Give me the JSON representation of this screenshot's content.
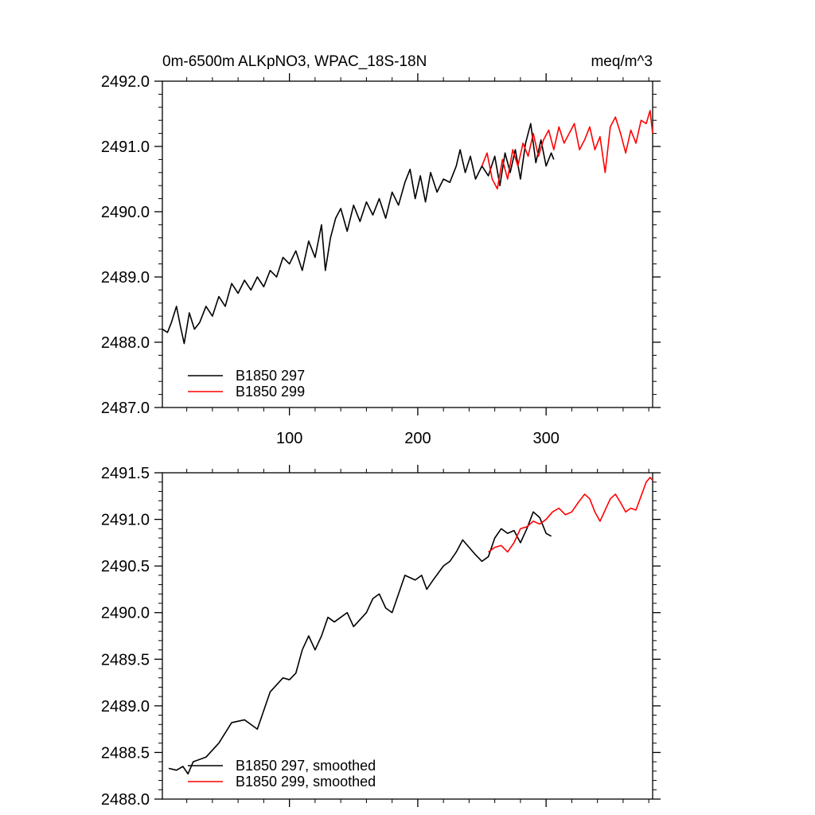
{
  "chart_data": [
    {
      "type": "line",
      "title_left": "0m-6500m ALKpNO3, WPAC_18S-18N",
      "title_right": "meq/m^3",
      "xlim": [
        1,
        383
      ],
      "ylim": [
        2487.0,
        2492.0
      ],
      "x_ticks": [
        100,
        200,
        300
      ],
      "x_tick_labels": [
        "100",
        "200",
        "300"
      ],
      "y_ticks": [
        2487.0,
        2488.0,
        2489.0,
        2490.0,
        2491.0,
        2492.0
      ],
      "y_tick_labels": [
        "2487.0",
        "2488.0",
        "2489.0",
        "2490.0",
        "2491.0",
        "2492.0"
      ],
      "legend": [
        "B1850 297",
        "B1850 299"
      ],
      "legend_position": "lower-left",
      "series": [
        {
          "name": "B1850 297",
          "color": "#000000",
          "points": [
            [
              1,
              2488.2
            ],
            [
              5,
              2488.15
            ],
            [
              8,
              2488.3
            ],
            [
              12,
              2488.55
            ],
            [
              15,
              2488.25
            ],
            [
              18,
              2487.98
            ],
            [
              22,
              2488.45
            ],
            [
              26,
              2488.2
            ],
            [
              30,
              2488.3
            ],
            [
              35,
              2488.55
            ],
            [
              40,
              2488.4
            ],
            [
              45,
              2488.7
            ],
            [
              50,
              2488.55
            ],
            [
              55,
              2488.9
            ],
            [
              60,
              2488.75
            ],
            [
              65,
              2488.95
            ],
            [
              70,
              2488.8
            ],
            [
              75,
              2489.0
            ],
            [
              80,
              2488.85
            ],
            [
              85,
              2489.1
            ],
            [
              90,
              2489.0
            ],
            [
              95,
              2489.3
            ],
            [
              100,
              2489.2
            ],
            [
              105,
              2489.4
            ],
            [
              110,
              2489.1
            ],
            [
              115,
              2489.55
            ],
            [
              120,
              2489.3
            ],
            [
              125,
              2489.8
            ],
            [
              128,
              2489.1
            ],
            [
              132,
              2489.6
            ],
            [
              136,
              2489.9
            ],
            [
              140,
              2490.05
            ],
            [
              145,
              2489.7
            ],
            [
              150,
              2490.1
            ],
            [
              155,
              2489.85
            ],
            [
              160,
              2490.15
            ],
            [
              165,
              2489.95
            ],
            [
              170,
              2490.2
            ],
            [
              175,
              2489.9
            ],
            [
              180,
              2490.3
            ],
            [
              185,
              2490.1
            ],
            [
              190,
              2490.45
            ],
            [
              194,
              2490.65
            ],
            [
              198,
              2490.2
            ],
            [
              202,
              2490.55
            ],
            [
              206,
              2490.15
            ],
            [
              210,
              2490.6
            ],
            [
              215,
              2490.3
            ],
            [
              220,
              2490.5
            ],
            [
              225,
              2490.45
            ],
            [
              230,
              2490.7
            ],
            [
              233,
              2490.95
            ],
            [
              237,
              2490.6
            ],
            [
              241,
              2490.85
            ],
            [
              245,
              2490.5
            ],
            [
              250,
              2490.7
            ],
            [
              255,
              2490.55
            ],
            [
              260,
              2490.85
            ],
            [
              264,
              2490.4
            ],
            [
              268,
              2490.9
            ],
            [
              272,
              2490.6
            ],
            [
              276,
              2490.95
            ],
            [
              280,
              2490.5
            ],
            [
              284,
              2491.05
            ],
            [
              288,
              2491.35
            ],
            [
              292,
              2490.75
            ],
            [
              296,
              2491.1
            ],
            [
              300,
              2490.7
            ],
            [
              304,
              2490.9
            ],
            [
              306,
              2490.8
            ]
          ]
        },
        {
          "name": "B1850 299",
          "color": "#ff0000",
          "points": [
            [
              250,
              2490.7
            ],
            [
              254,
              2490.9
            ],
            [
              258,
              2490.5
            ],
            [
              262,
              2490.35
            ],
            [
              266,
              2490.8
            ],
            [
              270,
              2490.5
            ],
            [
              274,
              2490.95
            ],
            [
              278,
              2490.7
            ],
            [
              282,
              2491.05
            ],
            [
              286,
              2490.85
            ],
            [
              290,
              2491.2
            ],
            [
              294,
              2490.85
            ],
            [
              298,
              2491.1
            ],
            [
              302,
              2491.25
            ],
            [
              306,
              2490.95
            ],
            [
              310,
              2491.3
            ],
            [
              314,
              2491.05
            ],
            [
              318,
              2491.2
            ],
            [
              322,
              2491.35
            ],
            [
              326,
              2490.95
            ],
            [
              330,
              2491.1
            ],
            [
              334,
              2491.3
            ],
            [
              338,
              2490.95
            ],
            [
              342,
              2491.15
            ],
            [
              346,
              2490.6
            ],
            [
              350,
              2491.3
            ],
            [
              354,
              2491.45
            ],
            [
              358,
              2491.2
            ],
            [
              362,
              2490.9
            ],
            [
              366,
              2491.25
            ],
            [
              370,
              2491.05
            ],
            [
              374,
              2491.4
            ],
            [
              378,
              2491.35
            ],
            [
              381,
              2491.55
            ],
            [
              383,
              2491.2
            ]
          ]
        }
      ]
    },
    {
      "type": "line",
      "xlim": [
        1,
        383
      ],
      "ylim": [
        2488.0,
        2491.5
      ],
      "x_ticks": [
        100,
        200,
        300
      ],
      "y_ticks": [
        2488.0,
        2488.5,
        2489.0,
        2489.5,
        2490.0,
        2490.5,
        2491.0,
        2491.5
      ],
      "y_tick_labels": [
        "2488.0",
        "2488.5",
        "2489.0",
        "2489.5",
        "2490.0",
        "2490.5",
        "2491.0",
        "2491.5"
      ],
      "legend": [
        "B1850 297, smoothed",
        "B1850 299, smoothed"
      ],
      "legend_position": "lower-left",
      "series": [
        {
          "name": "B1850 297, smoothed",
          "color": "#000000",
          "points": [
            [
              6,
              2488.33
            ],
            [
              12,
              2488.31
            ],
            [
              17,
              2488.35
            ],
            [
              21,
              2488.27
            ],
            [
              25,
              2488.4
            ],
            [
              35,
              2488.45
            ],
            [
              45,
              2488.6
            ],
            [
              55,
              2488.82
            ],
            [
              65,
              2488.85
            ],
            [
              70,
              2488.8
            ],
            [
              75,
              2488.75
            ],
            [
              80,
              2488.95
            ],
            [
              85,
              2489.15
            ],
            [
              95,
              2489.3
            ],
            [
              100,
              2489.28
            ],
            [
              105,
              2489.35
            ],
            [
              110,
              2489.6
            ],
            [
              115,
              2489.75
            ],
            [
              120,
              2489.6
            ],
            [
              125,
              2489.75
            ],
            [
              130,
              2489.95
            ],
            [
              135,
              2489.9
            ],
            [
              140,
              2489.95
            ],
            [
              145,
              2490.0
            ],
            [
              150,
              2489.85
            ],
            [
              160,
              2490.0
            ],
            [
              165,
              2490.15
            ],
            [
              170,
              2490.2
            ],
            [
              175,
              2490.05
            ],
            [
              180,
              2490.0
            ],
            [
              185,
              2490.2
            ],
            [
              190,
              2490.4
            ],
            [
              198,
              2490.35
            ],
            [
              203,
              2490.4
            ],
            [
              207,
              2490.25
            ],
            [
              212,
              2490.35
            ],
            [
              220,
              2490.5
            ],
            [
              225,
              2490.55
            ],
            [
              230,
              2490.65
            ],
            [
              235,
              2490.78
            ],
            [
              240,
              2490.7
            ],
            [
              245,
              2490.62
            ],
            [
              250,
              2490.55
            ],
            [
              255,
              2490.6
            ],
            [
              260,
              2490.8
            ],
            [
              265,
              2490.9
            ],
            [
              270,
              2490.85
            ],
            [
              275,
              2490.88
            ],
            [
              280,
              2490.75
            ],
            [
              285,
              2490.9
            ],
            [
              290,
              2491.08
            ],
            [
              295,
              2491.02
            ],
            [
              300,
              2490.85
            ],
            [
              304,
              2490.82
            ]
          ]
        },
        {
          "name": "B1850 299, smoothed",
          "color": "#ff0000",
          "points": [
            [
              255,
              2490.65
            ],
            [
              260,
              2490.7
            ],
            [
              265,
              2490.72
            ],
            [
              270,
              2490.65
            ],
            [
              275,
              2490.75
            ],
            [
              280,
              2490.9
            ],
            [
              285,
              2490.92
            ],
            [
              290,
              2490.98
            ],
            [
              295,
              2490.95
            ],
            [
              300,
              2491.0
            ],
            [
              305,
              2491.08
            ],
            [
              310,
              2491.12
            ],
            [
              315,
              2491.05
            ],
            [
              320,
              2491.08
            ],
            [
              325,
              2491.18
            ],
            [
              330,
              2491.27
            ],
            [
              334,
              2491.22
            ],
            [
              338,
              2491.08
            ],
            [
              342,
              2490.98
            ],
            [
              346,
              2491.1
            ],
            [
              350,
              2491.22
            ],
            [
              354,
              2491.27
            ],
            [
              358,
              2491.18
            ],
            [
              362,
              2491.08
            ],
            [
              366,
              2491.12
            ],
            [
              370,
              2491.1
            ],
            [
              374,
              2491.25
            ],
            [
              378,
              2491.4
            ],
            [
              381,
              2491.45
            ],
            [
              383,
              2491.42
            ]
          ]
        }
      ]
    }
  ]
}
